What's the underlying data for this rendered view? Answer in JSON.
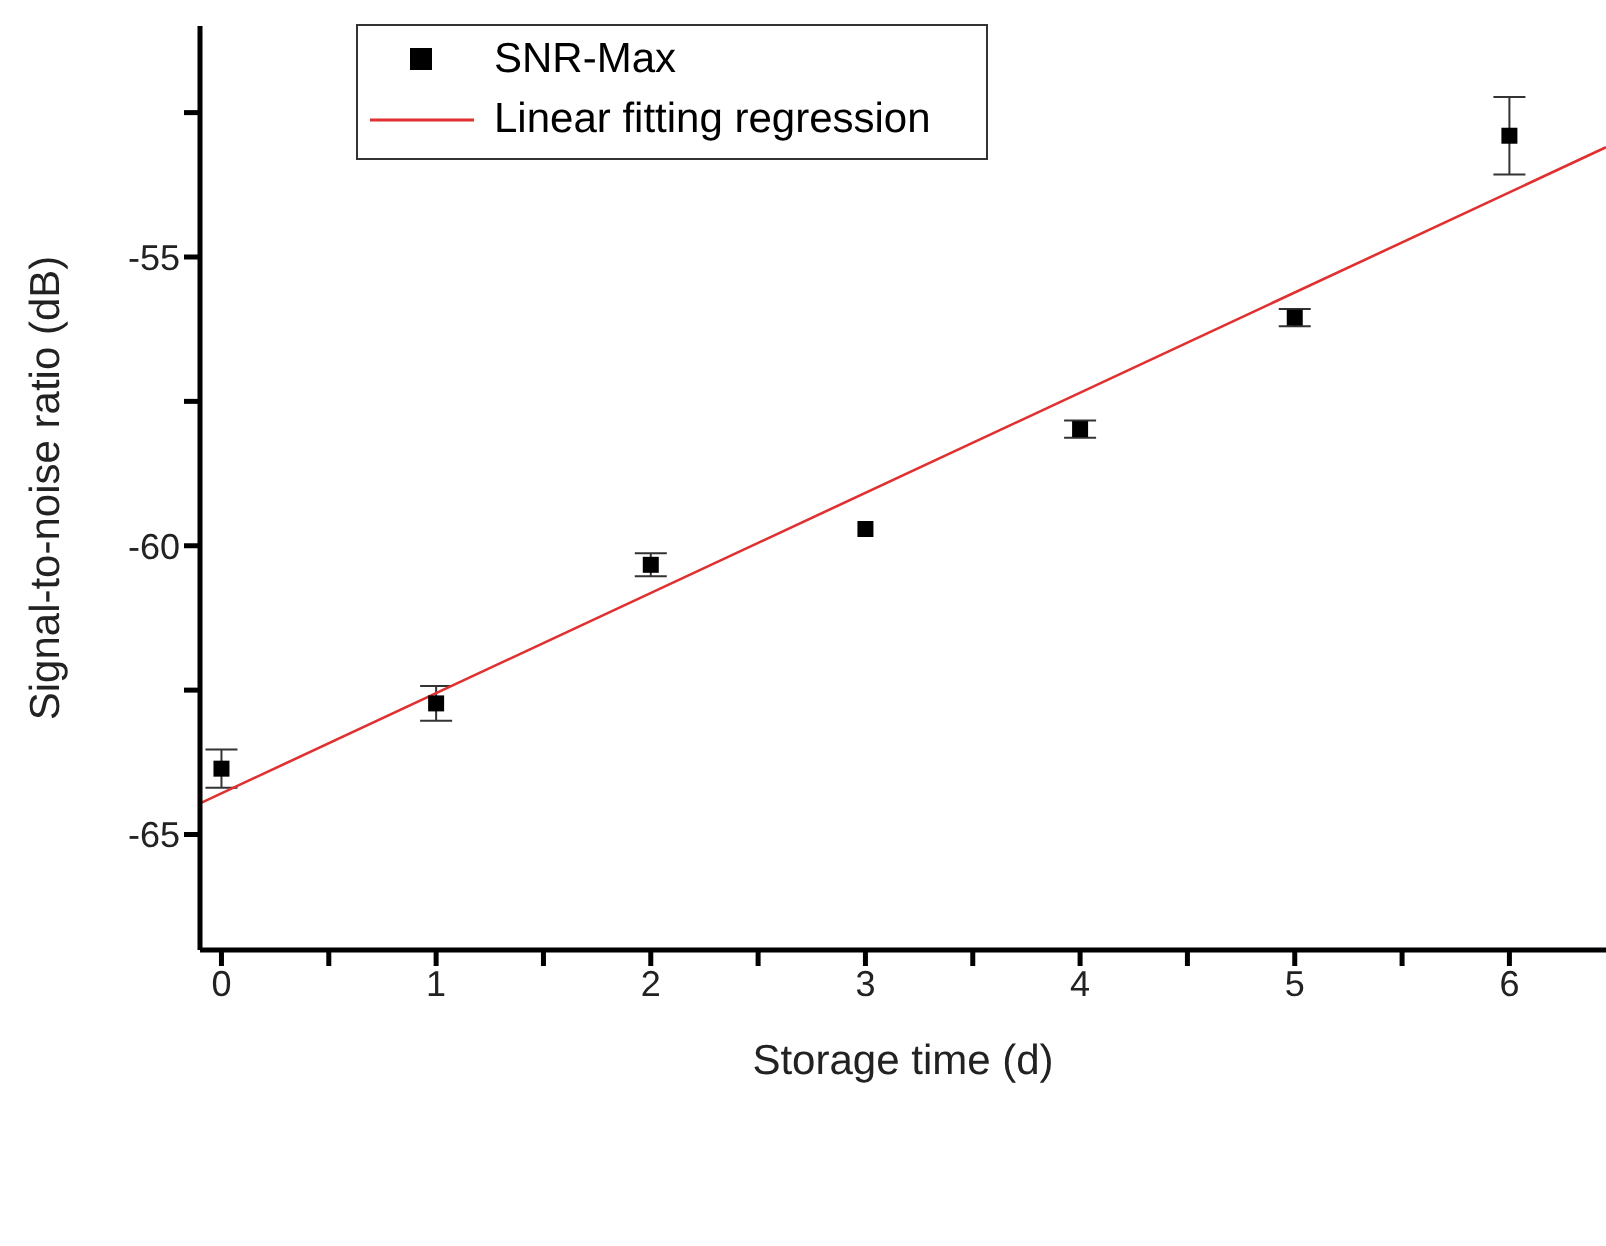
{
  "chart_data": {
    "type": "scatter",
    "xlabel": "Storage time (d)",
    "ylabel": "Signal-to-noise ratio (dB)",
    "x": [
      0,
      1,
      2,
      3,
      4,
      5,
      6
    ],
    "series": [
      {
        "name": "SNR-Max",
        "color": "#000000",
        "marker": "square",
        "values": [
          -63.86,
          -62.73,
          -60.33,
          -59.71,
          -57.98,
          -56.05,
          -52.9
        ],
        "errors": [
          0.33,
          0.3,
          0.2,
          null,
          0.15,
          0.15,
          0.67
        ]
      },
      {
        "name": "Linear fitting regression",
        "type": "line",
        "color": "#e03030",
        "marker": "none",
        "x": [
          -0.1,
          6.45
        ],
        "values": [
          -64.46,
          -53.1
        ]
      }
    ],
    "xlim": [
      -0.1,
      6.45
    ],
    "xticks": [
      0,
      {
        "value": 0.5,
        "label": null
      },
      1,
      {
        "value": 1.5,
        "label": null
      },
      2,
      {
        "value": 2.5,
        "label": null
      },
      3,
      {
        "value": 3.5,
        "label": null
      },
      4,
      {
        "value": 4.5,
        "label": null
      },
      5,
      {
        "value": 5.5,
        "label": null
      },
      6
    ],
    "ylim": [
      -67,
      -51
    ],
    "yticks": [
      {
        "value": -65,
        "label": "-65"
      },
      {
        "value": -62.5,
        "label": null
      },
      {
        "value": -60,
        "label": "-60"
      },
      {
        "value": -57.5,
        "label": null
      },
      {
        "value": -55,
        "label": "-55"
      },
      {
        "value": -52.5,
        "label": null
      }
    ],
    "grid": false,
    "legend": "top left"
  }
}
